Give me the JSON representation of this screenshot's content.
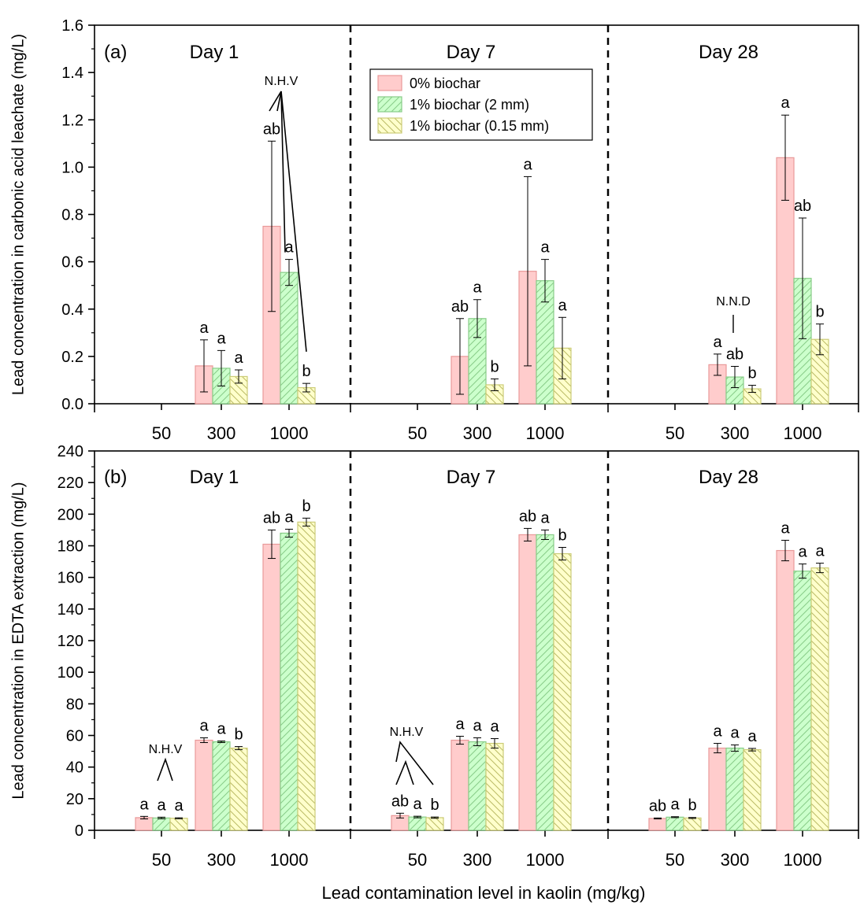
{
  "figure": {
    "xlabel": "Lead contamination level in kaolin (mg/kg)"
  },
  "chart_data": [
    {
      "type": "bar",
      "panel_label": "(a)",
      "ylabel": "Lead concentration in carbonic acid leachate (mg/L)",
      "ylim": [
        0,
        1.6
      ],
      "yticks": [
        "0.0",
        "0.2",
        "0.4",
        "0.6",
        "0.8",
        "1.0",
        "1.2",
        "1.4",
        "1.6"
      ],
      "grid": false,
      "legend_position": "top-center",
      "categories": [
        "50",
        "300",
        "1000"
      ],
      "groups": [
        {
          "title": "Day 1",
          "series": [
            {
              "name": "0% biochar",
              "values": [
                null,
                0.16,
                0.75
              ],
              "errors": [
                null,
                0.11,
                0.36
              ],
              "letters": [
                "",
                "a",
                "ab"
              ]
            },
            {
              "name": "1% biochar (2 mm)",
              "values": [
                null,
                0.15,
                0.555
              ],
              "errors": [
                null,
                0.075,
                0.055
              ],
              "letters": [
                "",
                "a",
                "a"
              ]
            },
            {
              "name": "1% biochar (0.15 mm)",
              "values": [
                null,
                0.115,
                0.068
              ],
              "errors": [
                null,
                0.028,
                0.018
              ],
              "letters": [
                "",
                "a",
                "b"
              ]
            }
          ]
        },
        {
          "title": "Day 7",
          "series": [
            {
              "name": "0% biochar",
              "values": [
                null,
                0.2,
                0.56
              ],
              "errors": [
                null,
                0.16,
                0.4
              ],
              "letters": [
                "",
                "ab",
                "a"
              ]
            },
            {
              "name": "1% biochar (2 mm)",
              "values": [
                null,
                0.36,
                0.52
              ],
              "errors": [
                null,
                0.08,
                0.09
              ],
              "letters": [
                "",
                "a",
                "a"
              ]
            },
            {
              "name": "1% biochar (0.15 mm)",
              "values": [
                null,
                0.08,
                0.235
              ],
              "errors": [
                null,
                0.025,
                0.13
              ],
              "letters": [
                "",
                "b",
                "a"
              ]
            }
          ]
        },
        {
          "title": "Day 28",
          "series": [
            {
              "name": "0% biochar",
              "values": [
                null,
                0.165,
                1.04
              ],
              "errors": [
                null,
                0.045,
                0.18
              ],
              "letters": [
                "",
                "a",
                "a"
              ]
            },
            {
              "name": "1% biochar (2 mm)",
              "values": [
                null,
                0.113,
                0.53
              ],
              "errors": [
                null,
                0.045,
                0.255
              ],
              "letters": [
                "",
                "ab",
                "ab"
              ]
            },
            {
              "name": "1% biochar (0.15 mm)",
              "values": [
                null,
                0.063,
                0.272
              ],
              "errors": [
                null,
                0.015,
                0.065
              ],
              "letters": [
                "",
                "b",
                "b"
              ]
            }
          ]
        }
      ],
      "annotations": [
        {
          "text": "N.H.V",
          "group": 0,
          "category": "1000"
        },
        {
          "text": "N.N.D",
          "group": 2,
          "category": "300"
        }
      ]
    },
    {
      "type": "bar",
      "panel_label": "(b)",
      "ylabel": "Lead concentration in EDTA extraction (mg/L)",
      "ylim": [
        0,
        240
      ],
      "yticks": [
        "0",
        "20",
        "40",
        "60",
        "80",
        "100",
        "120",
        "140",
        "160",
        "180",
        "200",
        "220",
        "240"
      ],
      "grid": false,
      "categories": [
        "50",
        "300",
        "1000"
      ],
      "groups": [
        {
          "title": "Day 1",
          "series": [
            {
              "name": "0% biochar",
              "values": [
                8,
                57,
                181
              ],
              "errors": [
                0.8,
                1.5,
                9
              ],
              "letters": [
                "a",
                "a",
                "ab"
              ]
            },
            {
              "name": "1% biochar (2 mm)",
              "values": [
                7.8,
                56,
                188
              ],
              "errors": [
                0.5,
                0.5,
                2.5
              ],
              "letters": [
                "a",
                "a",
                "a"
              ]
            },
            {
              "name": "1% biochar (0.15 mm)",
              "values": [
                7.6,
                52,
                195
              ],
              "errors": [
                0.3,
                1.0,
                2.5
              ],
              "letters": [
                "a",
                "b",
                "b"
              ]
            }
          ]
        },
        {
          "title": "Day 7",
          "series": [
            {
              "name": "0% biochar",
              "values": [
                9.3,
                57,
                187
              ],
              "errors": [
                1.5,
                2.5,
                4
              ],
              "letters": [
                "ab",
                "a",
                "ab"
              ]
            },
            {
              "name": "1% biochar (2 mm)",
              "values": [
                8.4,
                56,
                187
              ],
              "errors": [
                0.5,
                2.5,
                3
              ],
              "letters": [
                "a",
                "a",
                "a"
              ]
            },
            {
              "name": "1% biochar (0.15 mm)",
              "values": [
                8.0,
                55,
                175
              ],
              "errors": [
                0.4,
                3,
                4
              ],
              "letters": [
                "b",
                "a",
                "b"
              ]
            }
          ]
        },
        {
          "title": "Day 28",
          "series": [
            {
              "name": "0% biochar",
              "values": [
                7.5,
                52,
                177
              ],
              "errors": [
                0.3,
                3,
                6.5
              ],
              "letters": [
                "ab",
                "a",
                "a"
              ]
            },
            {
              "name": "1% biochar (2 mm)",
              "values": [
                8.3,
                52,
                164
              ],
              "errors": [
                0.3,
                2,
                4.5
              ],
              "letters": [
                "a",
                "a",
                "a"
              ]
            },
            {
              "name": "1% biochar (0.15 mm)",
              "values": [
                7.8,
                51,
                166
              ],
              "errors": [
                0.3,
                0.8,
                3
              ],
              "letters": [
                "b",
                "a",
                "a"
              ]
            }
          ]
        }
      ],
      "annotations": [
        {
          "text": "N.H.V",
          "group": 0,
          "category": "50"
        },
        {
          "text": "N.H.V",
          "group": 1,
          "category": "50"
        }
      ]
    }
  ],
  "colors": {
    "series_fill": [
      "#ffcccc",
      "#ccffcc",
      "#ffffcc"
    ],
    "series_stroke": [
      "#e89999",
      "#88cc88",
      "#cccc77"
    ],
    "hatch": [
      "none",
      "#88cc88",
      "#bbbb66"
    ]
  }
}
